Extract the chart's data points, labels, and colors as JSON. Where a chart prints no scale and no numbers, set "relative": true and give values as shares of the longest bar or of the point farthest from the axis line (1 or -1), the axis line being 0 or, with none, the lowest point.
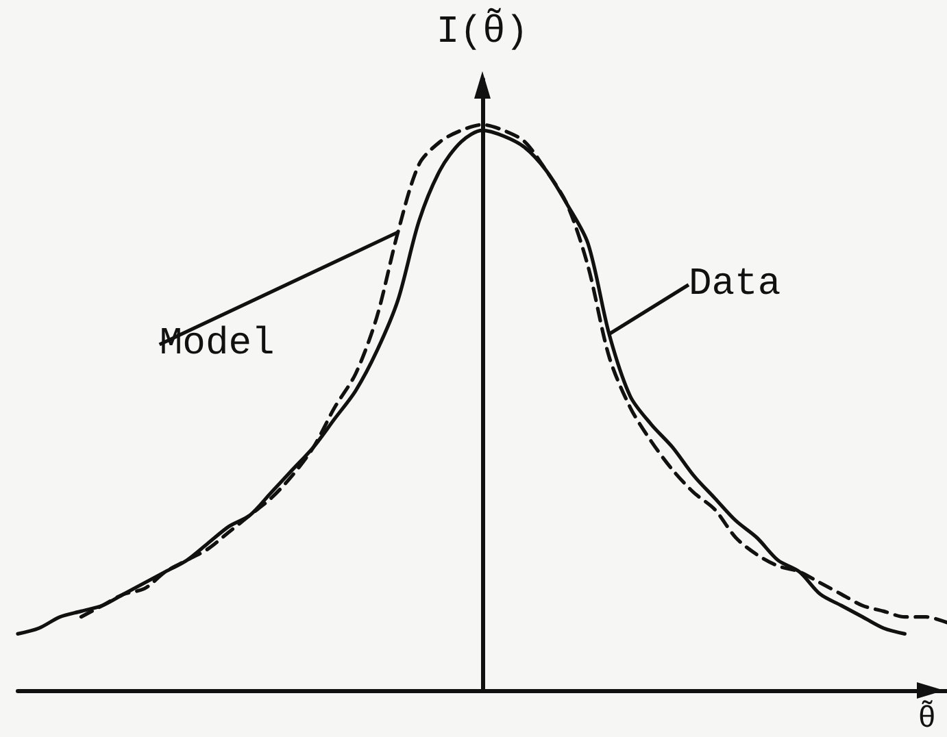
{
  "chart_data": {
    "type": "line",
    "relative": true,
    "xlabel": "θ̃",
    "ylabel": "I(θ̃)",
    "tick_labels": false,
    "marker": "none",
    "categories": [
      null,
      null,
      null,
      null,
      null,
      null,
      null,
      null,
      null,
      null,
      null,
      null,
      null,
      null,
      null,
      null,
      null,
      null,
      null,
      null,
      null,
      null,
      null,
      null,
      null,
      null,
      null,
      null,
      null,
      null,
      null,
      null,
      null,
      null,
      null,
      null,
      null,
      null,
      null,
      null,
      null,
      null,
      null,
      null,
      null
    ],
    "series": [
      {
        "name": "Data",
        "color": "#111111",
        "line_style": "solid",
        "values": [
          0.1,
          0.11,
          0.13,
          0.14,
          0.15,
          0.17,
          0.19,
          0.21,
          0.23,
          0.26,
          0.29,
          0.31,
          0.35,
          0.39,
          0.43,
          0.48,
          0.53,
          0.6,
          0.69,
          0.83,
          0.92,
          0.97,
          0.99,
          0.98,
          0.96,
          0.92,
          0.86,
          0.79,
          0.63,
          0.52,
          0.47,
          0.43,
          0.38,
          0.34,
          0.3,
          0.27,
          0.23,
          0.21,
          0.17,
          0.15,
          0.13,
          0.11,
          0.1,
          null,
          null
        ]
      },
      {
        "name": "Model",
        "color": "#111111",
        "line_style": "dashed",
        "values": [
          null,
          null,
          null,
          0.13,
          0.15,
          0.17,
          0.18,
          0.21,
          0.23,
          0.25,
          0.28,
          0.31,
          0.34,
          0.38,
          0.43,
          0.5,
          0.56,
          0.66,
          0.81,
          0.93,
          0.97,
          0.99,
          1.0,
          0.99,
          0.97,
          0.92,
          0.86,
          0.75,
          0.59,
          0.5,
          0.44,
          0.39,
          0.35,
          0.32,
          0.27,
          0.24,
          0.22,
          0.21,
          0.19,
          0.17,
          0.15,
          0.14,
          0.13,
          0.13,
          0.12
        ]
      }
    ]
  }
}
